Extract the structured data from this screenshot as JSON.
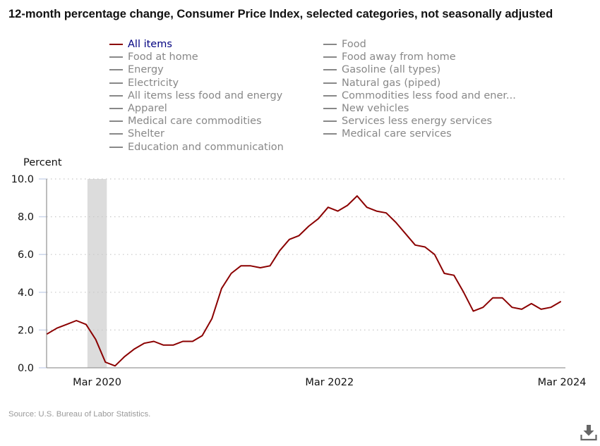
{
  "title": "12-month percentage change, Consumer Price Index, selected categories, not seasonally adjusted",
  "legend": [
    {
      "label": "All items",
      "active": true
    },
    {
      "label": "Food",
      "active": false
    },
    {
      "label": "Food at home",
      "active": false
    },
    {
      "label": "Food away from home",
      "active": false
    },
    {
      "label": "Energy",
      "active": false
    },
    {
      "label": "Gasoline (all types)",
      "active": false
    },
    {
      "label": "Electricity",
      "active": false
    },
    {
      "label": "Natural gas (piped)",
      "active": false
    },
    {
      "label": "All items less food and energy",
      "active": false
    },
    {
      "label": "Commodities less food and ener...",
      "active": false
    },
    {
      "label": "Apparel",
      "active": false
    },
    {
      "label": "New vehicles",
      "active": false
    },
    {
      "label": "Medical care commodities",
      "active": false
    },
    {
      "label": "Services less energy services",
      "active": false
    },
    {
      "label": "Shelter",
      "active": false
    },
    {
      "label": "Medical care services",
      "active": false
    },
    {
      "label": "Education and communication",
      "active": false
    }
  ],
  "source": "Source: U.S. Bureau of Labor Statistics.",
  "download_icon": "download-icon",
  "colors": {
    "series": "#8b0000",
    "legend_active_text": "#000080",
    "legend_inactive": "#888888",
    "recession": "#dcdcdc",
    "grid": "#c8c8c8",
    "axis": "#999999",
    "tick": "#ccd6eb"
  },
  "chart_data": {
    "type": "line",
    "title": "12-month percentage change, Consumer Price Index, selected categories, not seasonally adjusted",
    "xlabel": "",
    "ylabel": "Percent",
    "ylim": [
      0,
      10
    ],
    "yticks": [
      0,
      2,
      4,
      6,
      8,
      10
    ],
    "ytick_labels": [
      "0.0",
      "2.0",
      "4.0",
      "6.0",
      "8.0",
      "10.0"
    ],
    "xtick_labels": [
      "Mar 2020",
      "Mar 2022",
      "Mar 2024"
    ],
    "grid": true,
    "legend_position": "top",
    "recession_shading": [
      {
        "start": "Feb 2020",
        "end": "Apr 2020"
      }
    ],
    "x": [
      "Oct 2019",
      "Nov 2019",
      "Dec 2019",
      "Jan 2020",
      "Feb 2020",
      "Mar 2020",
      "Apr 2020",
      "May 2020",
      "Jun 2020",
      "Jul 2020",
      "Aug 2020",
      "Sep 2020",
      "Oct 2020",
      "Nov 2020",
      "Dec 2020",
      "Jan 2021",
      "Feb 2021",
      "Mar 2021",
      "Apr 2021",
      "May 2021",
      "Jun 2021",
      "Jul 2021",
      "Aug 2021",
      "Sep 2021",
      "Oct 2021",
      "Nov 2021",
      "Dec 2021",
      "Jan 2022",
      "Feb 2022",
      "Mar 2022",
      "Apr 2022",
      "May 2022",
      "Jun 2022",
      "Jul 2022",
      "Aug 2022",
      "Sep 2022",
      "Oct 2022",
      "Nov 2022",
      "Dec 2022",
      "Jan 2023",
      "Feb 2023",
      "Mar 2023",
      "Apr 2023",
      "May 2023",
      "Jun 2023",
      "Jul 2023",
      "Aug 2023",
      "Sep 2023",
      "Oct 2023",
      "Nov 2023",
      "Dec 2023",
      "Jan 2024",
      "Feb 2024",
      "Mar 2024"
    ],
    "series": [
      {
        "name": "All items",
        "values": [
          1.8,
          2.1,
          2.3,
          2.5,
          2.3,
          1.5,
          0.3,
          0.1,
          0.6,
          1.0,
          1.3,
          1.4,
          1.2,
          1.2,
          1.4,
          1.4,
          1.7,
          2.6,
          4.2,
          5.0,
          5.4,
          5.4,
          5.3,
          5.4,
          6.2,
          6.8,
          7.0,
          7.5,
          7.9,
          8.5,
          8.3,
          8.6,
          9.1,
          8.5,
          8.3,
          8.2,
          7.7,
          7.1,
          6.5,
          6.4,
          6.0,
          5.0,
          4.9,
          4.0,
          3.0,
          3.2,
          3.7,
          3.7,
          3.2,
          3.1,
          3.4,
          3.1,
          3.2,
          3.5
        ]
      }
    ]
  }
}
